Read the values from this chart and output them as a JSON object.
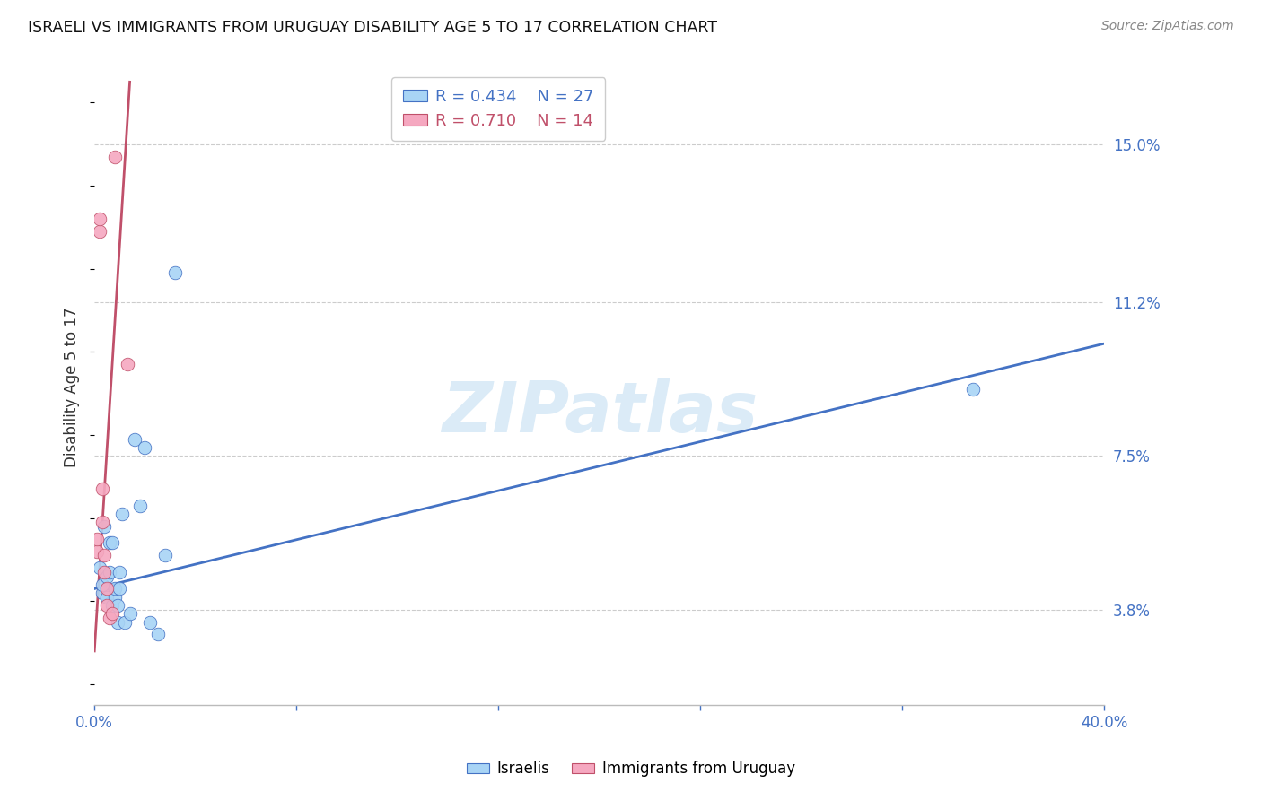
{
  "title": "ISRAELI VS IMMIGRANTS FROM URUGUAY DISABILITY AGE 5 TO 17 CORRELATION CHART",
  "source": "Source: ZipAtlas.com",
  "ylabel": "Disability Age 5 to 17",
  "ytick_labels": [
    "3.8%",
    "7.5%",
    "11.2%",
    "15.0%"
  ],
  "ytick_values": [
    0.038,
    0.075,
    0.112,
    0.15
  ],
  "xlim": [
    0.0,
    0.4
  ],
  "ylim": [
    0.015,
    0.168
  ],
  "legend_blue_r": "0.434",
  "legend_blue_n": "27",
  "legend_pink_r": "0.710",
  "legend_pink_n": "14",
  "legend_label_blue": "Israelis",
  "legend_label_pink": "Immigrants from Uruguay",
  "watermark": "ZIPatlas",
  "blue_scatter_color": "#a8d4f5",
  "pink_scatter_color": "#f5a8c0",
  "line_blue_color": "#4472C4",
  "line_pink_color": "#C0506A",
  "israelis_x": [
    0.002,
    0.003,
    0.003,
    0.004,
    0.005,
    0.005,
    0.006,
    0.006,
    0.007,
    0.007,
    0.008,
    0.008,
    0.009,
    0.009,
    0.01,
    0.01,
    0.011,
    0.012,
    0.014,
    0.016,
    0.018,
    0.02,
    0.022,
    0.025,
    0.028,
    0.032,
    0.348
  ],
  "israelis_y": [
    0.048,
    0.042,
    0.044,
    0.058,
    0.041,
    0.046,
    0.047,
    0.054,
    0.039,
    0.054,
    0.041,
    0.043,
    0.039,
    0.035,
    0.043,
    0.047,
    0.061,
    0.035,
    0.037,
    0.079,
    0.063,
    0.077,
    0.035,
    0.032,
    0.051,
    0.119,
    0.091
  ],
  "uruguay_x": [
    0.001,
    0.001,
    0.002,
    0.002,
    0.003,
    0.003,
    0.004,
    0.004,
    0.005,
    0.005,
    0.006,
    0.007,
    0.008,
    0.013
  ],
  "uruguay_y": [
    0.052,
    0.055,
    0.129,
    0.132,
    0.059,
    0.067,
    0.047,
    0.051,
    0.039,
    0.043,
    0.036,
    0.037,
    0.147,
    0.097
  ],
  "blue_line_x": [
    0.0,
    0.4
  ],
  "blue_line_y": [
    0.043,
    0.102
  ],
  "pink_line_x": [
    0.0,
    0.014
  ],
  "pink_line_y": [
    0.028,
    0.165
  ]
}
